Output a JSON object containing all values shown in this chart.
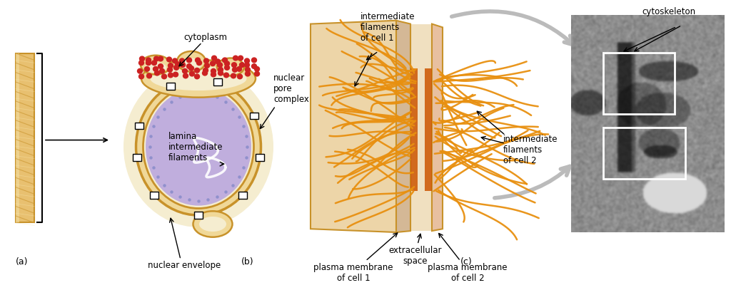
{
  "background_color": "#ffffff",
  "fig_width": 10.24,
  "fig_height": 4.0,
  "labels": {
    "a": "(a)",
    "b": "(b)",
    "c": "(c)",
    "cytoplasm": "cytoplasm",
    "nuclear_pore_complex": "nuclear\npore\ncomplex",
    "lamina": "lamina\nintermediate\nfilaments",
    "nuclear_envelope": "nuclear envelope",
    "intermediate_filaments_cell1": "intermediate\nfilaments\nof cell 1",
    "extracellular_space": "extracellular\nspace",
    "plasma_membrane_cell1": "plasma membrane\nof cell 1",
    "plasma_membrane_cell2": "plasma membrane\nof cell 2",
    "intermediate_filaments_cell2": "intermediate\nfilaments\nof cell 2",
    "cytoskeleton": "cytoskeleton"
  },
  "colors": {
    "gold_outer": "#C8922A",
    "gold_inner": "#E8C070",
    "gold_light": "#F0D898",
    "cream": "#F5EDD0",
    "purple_nucleus": "#C0AEDD",
    "blue_lamina": "#9090CC",
    "red_ribosomes": "#CC2222",
    "orange_filaments": "#E89010",
    "orange_dark": "#CC6600",
    "tan_membrane": "#D4B896",
    "tan_light": "#EDD5B0",
    "pink_membrane": "#E8C0A0",
    "white": "#FFFFFF",
    "black": "#000000",
    "gray_arrow": "#BBBBBB",
    "gray_arrow_dark": "#999999"
  }
}
